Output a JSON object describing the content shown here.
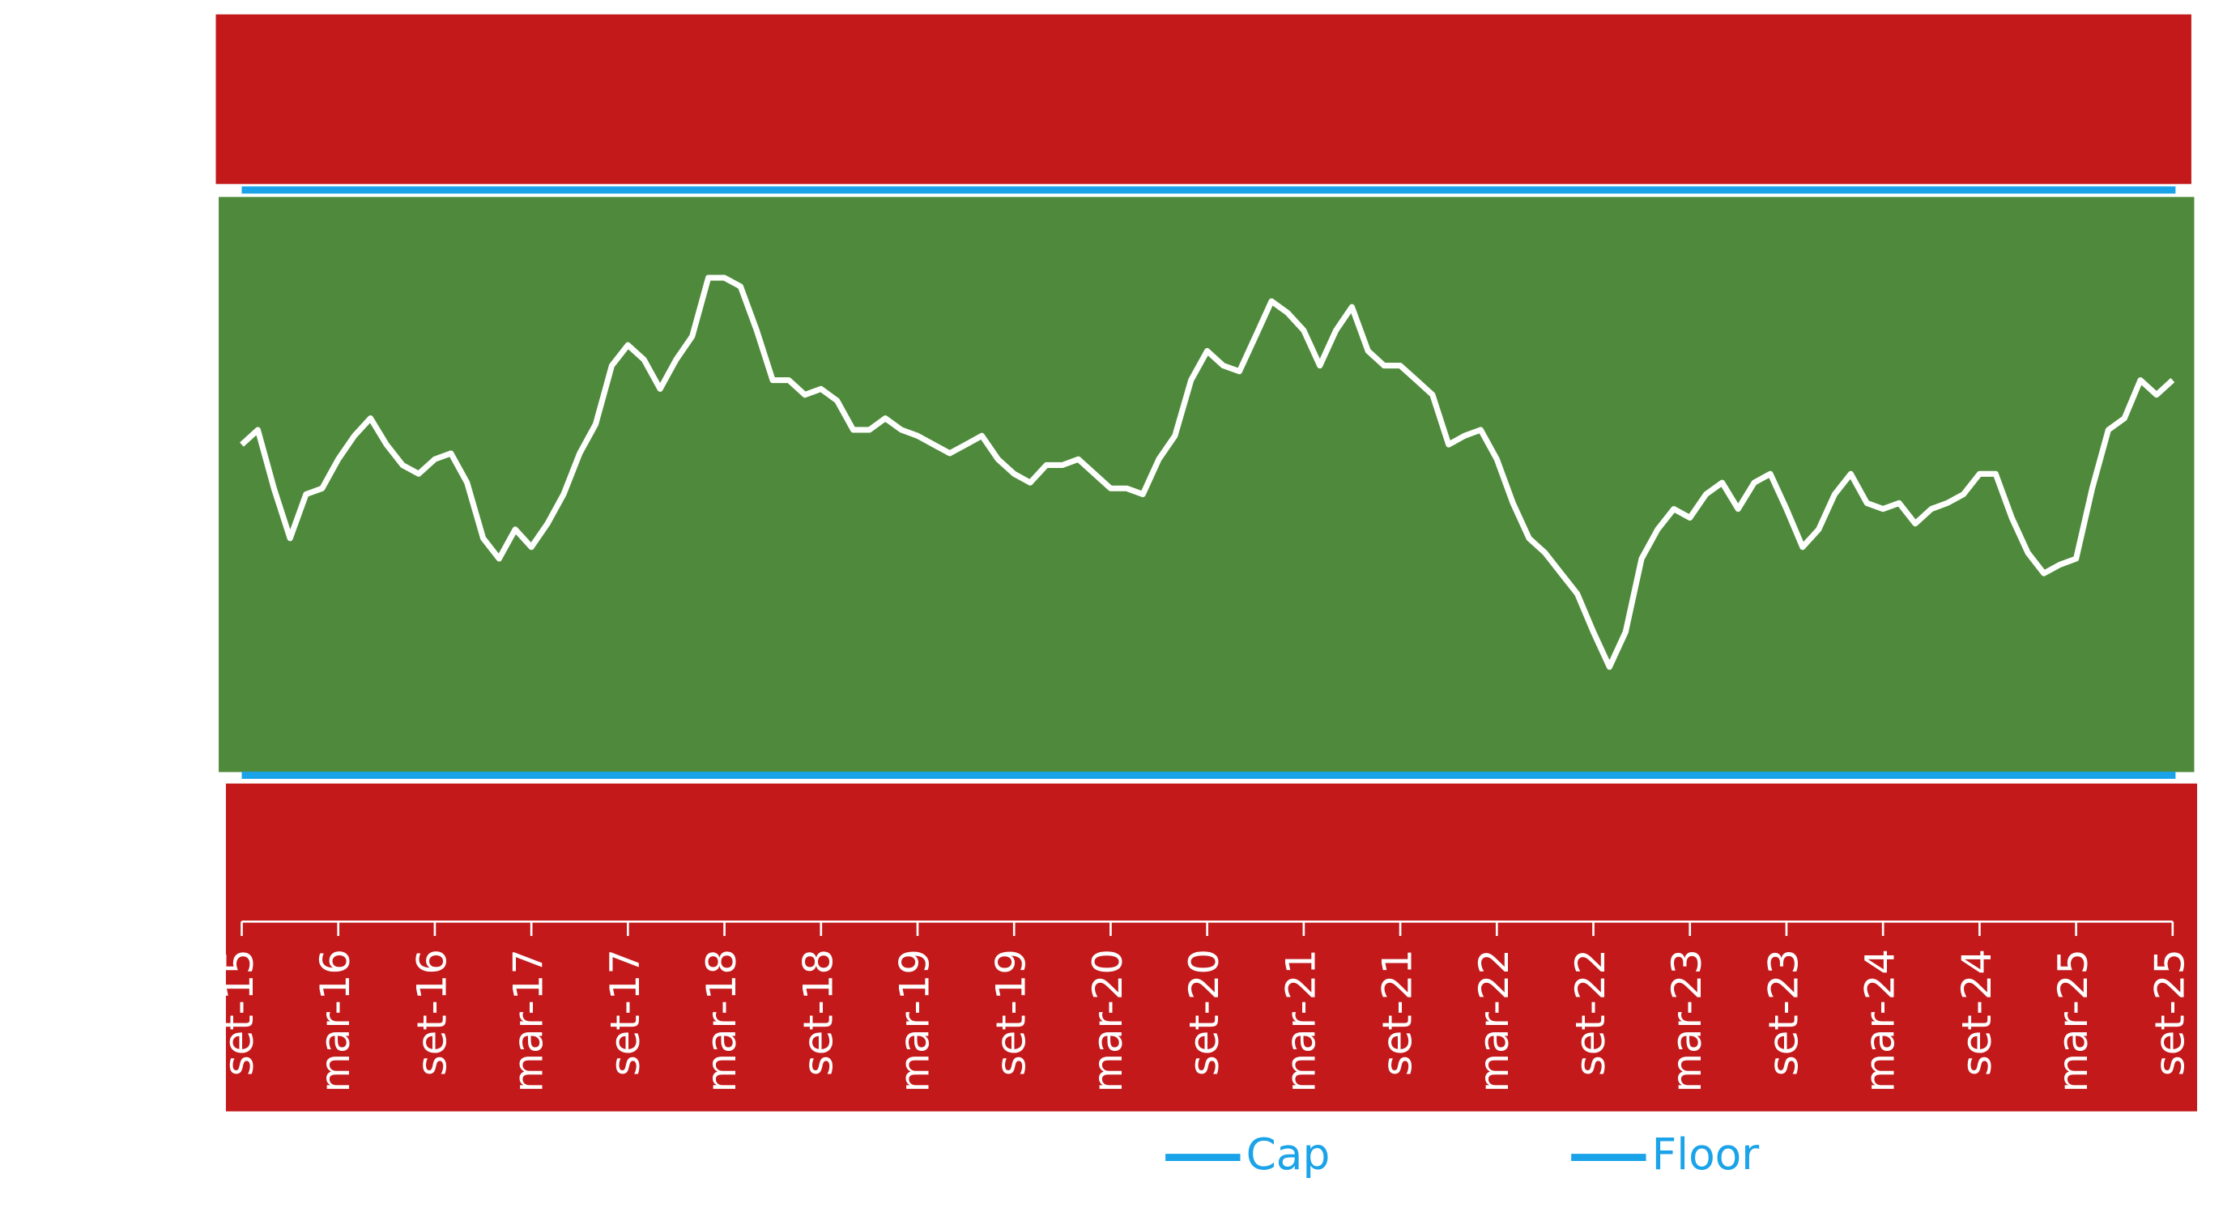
{
  "chart_data": {
    "type": "line",
    "x": [
      0,
      1,
      2,
      3,
      4,
      5,
      6,
      7,
      8,
      9,
      10,
      11,
      12,
      13,
      14,
      15,
      16,
      17,
      18,
      19,
      20,
      21,
      22,
      23,
      24,
      25,
      26,
      27,
      28,
      29,
      30,
      31,
      32,
      33,
      34,
      35,
      36,
      37,
      38,
      39,
      40,
      41,
      42,
      43,
      44,
      45,
      46,
      47,
      48,
      49,
      50,
      51,
      52,
      53,
      54,
      55,
      56,
      57,
      58,
      59,
      60,
      61,
      62,
      63,
      64,
      65,
      66,
      67,
      68,
      69,
      70,
      71,
      72,
      73,
      74,
      75,
      76,
      77,
      78,
      79,
      80,
      81,
      82,
      83,
      84,
      85,
      86,
      87,
      88,
      89,
      90,
      91,
      92,
      93,
      94,
      95,
      96,
      97,
      98,
      99,
      100,
      101,
      102,
      103,
      104,
      105,
      106,
      107,
      108,
      109,
      110,
      111,
      112,
      113,
      114,
      115,
      116,
      117,
      118,
      119,
      120
    ],
    "series": [
      {
        "color": "#ffffff",
        "values": [
          56.5,
          59,
          49,
          40.5,
          48,
          49,
          54,
          58,
          61,
          56.5,
          53,
          51.5,
          54,
          55,
          50,
          40.5,
          37,
          42,
          39,
          43,
          48,
          55,
          60,
          70,
          73.5,
          71,
          66,
          71,
          75,
          85,
          85,
          83.5,
          76,
          67.5,
          67.5,
          65,
          66,
          64,
          59,
          59,
          61,
          59,
          58,
          56.5,
          55,
          56.5,
          58,
          54,
          51.5,
          50,
          53,
          53,
          54,
          51.5,
          49,
          49,
          48,
          54,
          58,
          67.5,
          72.5,
          70,
          69,
          75,
          81,
          79,
          76,
          70,
          76,
          80,
          72.5,
          70,
          70,
          67.5,
          65,
          56.5,
          58,
          59,
          54,
          46.5,
          40.5,
          38,
          34.5,
          31,
          24.5,
          18.5,
          24.5,
          37,
          42,
          45.5,
          44,
          48,
          50,
          45.5,
          50,
          51.5,
          45.5,
          39,
          42,
          48,
          51.5,
          46.5,
          45.5,
          46.5,
          43,
          45.5,
          46.5,
          48,
          51.5,
          51.5,
          44,
          38,
          34.5,
          36,
          37,
          49,
          59,
          61,
          67.5,
          65,
          67.5
        ]
      }
    ],
    "reference_lines": [
      {
        "name": "Cap",
        "color": "#1aa3e8",
        "value": 100
      },
      {
        "name": "Floor",
        "color": "#1aa3e8",
        "value": 0
      }
    ],
    "xlim": [
      0,
      120
    ],
    "xticks": [
      {
        "value": 0,
        "label": "set-15"
      },
      {
        "value": 6,
        "label": "mar-16"
      },
      {
        "value": 12,
        "label": "set-16"
      },
      {
        "value": 18,
        "label": "mar-17"
      },
      {
        "value": 24,
        "label": "set-17"
      },
      {
        "value": 30,
        "label": "mar-18"
      },
      {
        "value": 36,
        "label": "set-18"
      },
      {
        "value": 42,
        "label": "mar-19"
      },
      {
        "value": 48,
        "label": "set-19"
      },
      {
        "value": 54,
        "label": "mar-20"
      },
      {
        "value": 60,
        "label": "set-20"
      },
      {
        "value": 66,
        "label": "mar-21"
      },
      {
        "value": 72,
        "label": "set-21"
      },
      {
        "value": 78,
        "label": "mar-22"
      },
      {
        "value": 84,
        "label": "set-22"
      },
      {
        "value": 90,
        "label": "mar-23"
      },
      {
        "value": 96,
        "label": "set-23"
      },
      {
        "value": 102,
        "label": "mar-24"
      },
      {
        "value": 108,
        "label": "set-24"
      },
      {
        "value": 114,
        "label": "mar-25"
      },
      {
        "value": 120,
        "label": "set-25"
      }
    ],
    "ylim": [
      -25,
      130
    ],
    "grid": false
  }
}
